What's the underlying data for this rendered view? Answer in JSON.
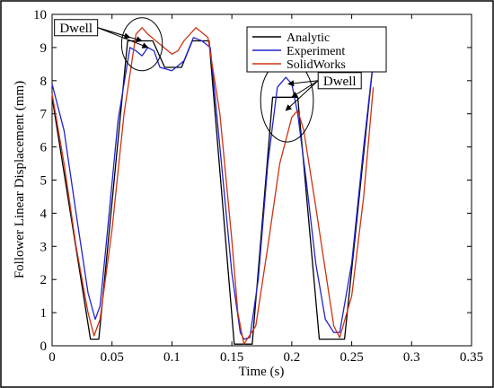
{
  "chart_data": {
    "type": "line",
    "xlabel": "Time (s)",
    "ylabel": "Follower Linear Displacement (mm)",
    "xlim": [
      0,
      0.35
    ],
    "ylim": [
      0,
      10
    ],
    "xticks": [
      0,
      0.05,
      0.1,
      0.15,
      0.2,
      0.25,
      0.3,
      0.35
    ],
    "xtick_labels": [
      "0",
      "0.05",
      "0.1",
      "0.15",
      "0.2",
      "0.25",
      "0.3",
      "0.35"
    ],
    "yticks": [
      0,
      1,
      2,
      3,
      4,
      5,
      6,
      7,
      8,
      9,
      10
    ],
    "ytick_labels": [
      "0",
      "1",
      "2",
      "3",
      "4",
      "5",
      "6",
      "7",
      "8",
      "9",
      "10"
    ],
    "grid": false,
    "legend_position": "top-right",
    "series": [
      {
        "name": "Analytic",
        "color": "#000000",
        "x": [
          0,
          0.032,
          0.039,
          0.063,
          0.084,
          0.094,
          0.108,
          0.117,
          0.131,
          0.152,
          0.158,
          0.167,
          0.184,
          0.205,
          0.223,
          0.231,
          0.244,
          0.268
        ],
        "y": [
          7.5,
          0.2,
          0.2,
          9.2,
          9.2,
          8.4,
          8.4,
          9.2,
          9.2,
          0.05,
          0.05,
          0.05,
          7.5,
          7.5,
          0.2,
          0.2,
          0.2,
          8.6
        ]
      },
      {
        "name": "Experiment",
        "color": "#2222cc",
        "x": [
          0,
          0.01,
          0.02,
          0.03,
          0.036,
          0.04,
          0.045,
          0.055,
          0.065,
          0.07,
          0.075,
          0.08,
          0.085,
          0.09,
          0.1,
          0.11,
          0.118,
          0.125,
          0.132,
          0.14,
          0.15,
          0.157,
          0.16,
          0.165,
          0.172,
          0.18,
          0.188,
          0.195,
          0.2,
          0.205,
          0.212,
          0.22,
          0.228,
          0.235,
          0.24,
          0.25,
          0.26,
          0.268
        ],
        "y": [
          7.9,
          6.5,
          4.0,
          1.6,
          0.8,
          1.2,
          3.0,
          6.8,
          9.0,
          8.9,
          8.75,
          9.0,
          8.9,
          8.4,
          8.3,
          8.6,
          9.3,
          9.2,
          9.0,
          6.0,
          2.2,
          0.4,
          0.2,
          0.25,
          2.0,
          5.5,
          7.8,
          8.1,
          7.9,
          7.0,
          5.0,
          2.5,
          0.8,
          0.4,
          0.4,
          2.5,
          6.0,
          8.6
        ]
      },
      {
        "name": "SolidWorks",
        "color": "#cc3311",
        "x": [
          0,
          0.01,
          0.02,
          0.03,
          0.035,
          0.04,
          0.05,
          0.06,
          0.07,
          0.075,
          0.08,
          0.09,
          0.1,
          0.105,
          0.11,
          0.12,
          0.13,
          0.14,
          0.15,
          0.155,
          0.16,
          0.17,
          0.18,
          0.19,
          0.2,
          0.205,
          0.21,
          0.22,
          0.23,
          0.235,
          0.24,
          0.25,
          0.26,
          0.268
        ],
        "y": [
          7.6,
          5.5,
          3.0,
          1.0,
          0.3,
          0.8,
          3.5,
          7.0,
          9.4,
          9.6,
          9.4,
          9.1,
          8.8,
          8.9,
          9.2,
          9.6,
          9.3,
          7.0,
          3.2,
          1.0,
          0.05,
          0.6,
          3.0,
          5.5,
          6.9,
          7.1,
          6.5,
          4.2,
          1.8,
          0.6,
          0.25,
          1.5,
          4.5,
          7.8
        ]
      }
    ],
    "annotations": [
      {
        "text": "Dwell",
        "x": 0.002,
        "y": 9.6,
        "targets": [
          [
            0.065,
            9.3
          ],
          [
            0.075,
            9.2
          ],
          [
            0.08,
            9.0
          ]
        ],
        "circle_center": [
          0.075,
          9.1
        ],
        "circle_radii": [
          0.017,
          0.8
        ]
      },
      {
        "text": "Dwell",
        "x": 0.222,
        "y": 8.0,
        "targets": [
          [
            0.197,
            7.9
          ],
          [
            0.2,
            7.5
          ],
          [
            0.195,
            7.1
          ]
        ],
        "circle_center": [
          0.196,
          7.4
        ],
        "circle_radii": [
          0.022,
          1.25
        ]
      }
    ]
  }
}
